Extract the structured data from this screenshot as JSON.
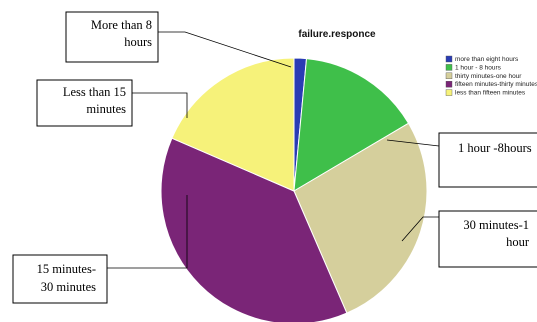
{
  "chart_data": {
    "type": "pie",
    "title": "failure.responce",
    "start_angle_deg": 0,
    "direction": "clockwise",
    "slices": [
      {
        "label": "more than eight hours",
        "value": 1.5,
        "color": "#2a3cb4"
      },
      {
        "label": "1 hour - 8 hours",
        "value": 15,
        "color": "#3fbf4a"
      },
      {
        "label": "thirty minutes-one hour",
        "value": 27,
        "color": "#d5cf9c"
      },
      {
        "label": "fifteen minutes-thirty minutes",
        "value": 38,
        "color": "#7a2577"
      },
      {
        "label": "less than fifteen minutes",
        "value": 18.5,
        "color": "#f6f27a"
      }
    ],
    "legend": {
      "placement": "right",
      "entries": [
        "more than eight hours",
        "1 hour - 8 hours",
        "thirty minutes-one hour",
        "fifteen minutes-thirty minutes",
        "less than fifteen minutes"
      ]
    },
    "annotations": [
      {
        "lines": [
          "More than 8",
          "hours"
        ]
      },
      {
        "lines": [
          "Less than 15",
          "minutes"
        ]
      },
      {
        "lines": [
          "1 hour -8hours"
        ]
      },
      {
        "lines": [
          "30 minutes-1",
          "hour"
        ]
      },
      {
        "lines": [
          "15 minutes-",
          "30 minutes"
        ]
      }
    ]
  }
}
